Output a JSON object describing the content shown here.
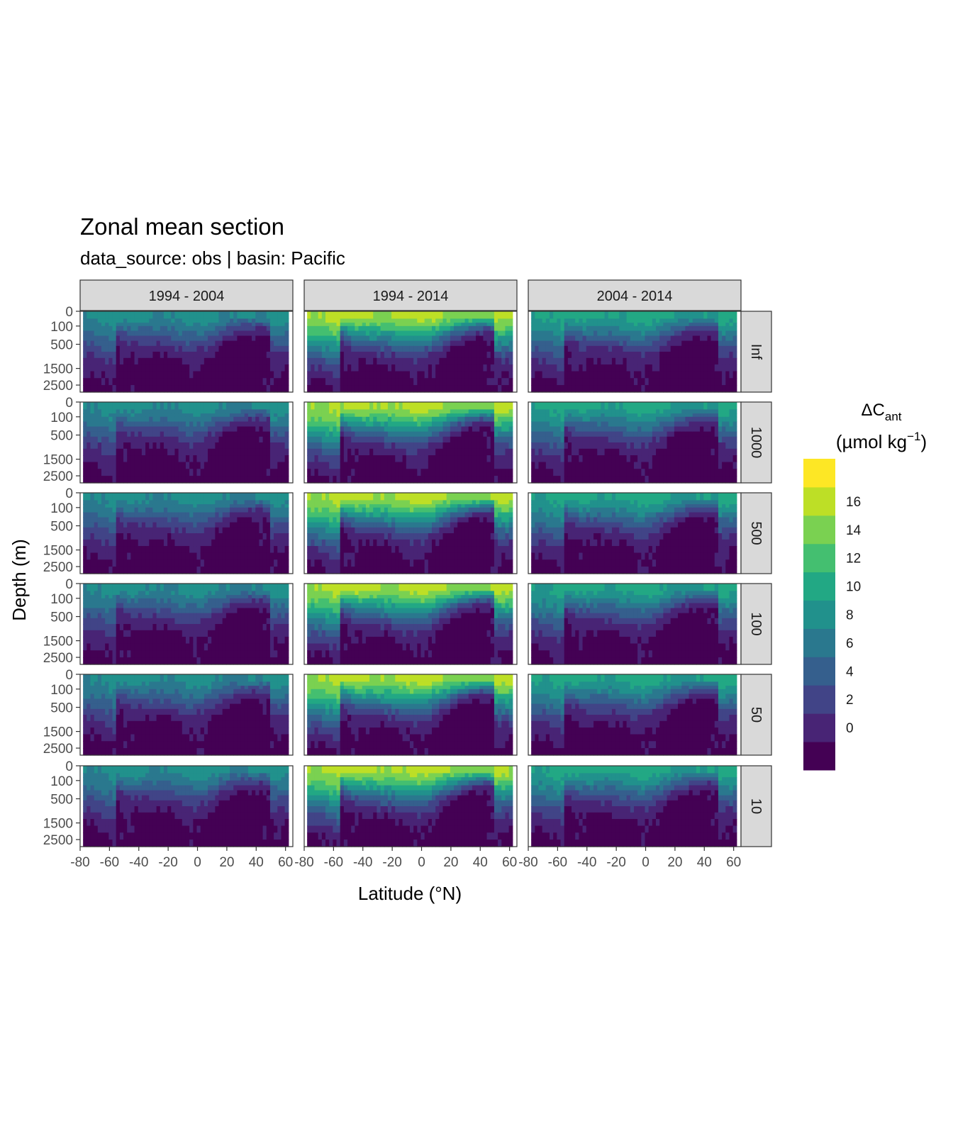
{
  "chart_data": {
    "type": "heatmap",
    "title": "Zonal mean section",
    "subtitle": "data_source:  obs | basin: Pacific",
    "xlabel": "Latitude (°N)",
    "ylabel": "Depth (m)",
    "xlim": [
      -80,
      65
    ],
    "x_ticks": [
      -80,
      -60,
      -40,
      -20,
      0,
      20,
      40,
      60
    ],
    "x_tick_labels": [
      "-80",
      "-60",
      "-40",
      "-20",
      "0",
      "20",
      "40",
      "60"
    ],
    "y_ticks": [
      0,
      100,
      500,
      1500,
      2500
    ],
    "y_tick_labels": [
      "0",
      "100",
      "500",
      "1500",
      "2500"
    ],
    "y_scale": "sqrt, reversed",
    "ylim": [
      3000,
      0
    ],
    "columns": [
      "1994 - 2004",
      "1994 - 2014",
      "2004 - 2014"
    ],
    "rows": [
      "Inf",
      "1000",
      "500",
      "100",
      "50",
      "10"
    ],
    "legend": {
      "title": "ΔC",
      "title_sub": "ant",
      "unit_prefix": "(µmol kg",
      "unit_exp": "−1",
      "unit_suffix": ")",
      "labels": [
        "16",
        "14",
        "12",
        "10",
        "8",
        "6",
        "4",
        "2",
        "0"
      ],
      "breaks": [
        -2,
        0,
        2,
        4,
        6,
        8,
        10,
        12,
        14,
        16,
        18
      ],
      "colors": [
        "#440154",
        "#482475",
        "#414487",
        "#355f8d",
        "#2a788e",
        "#21918c",
        "#22a884",
        "#44bf70",
        "#7ad151",
        "#bddf26",
        "#fde725"
      ],
      "position": "right"
    },
    "grid": true,
    "approx_surface_values": {
      "1994 - 2004": 10,
      "1994 - 2014": 18,
      "2004 - 2014": 12
    }
  }
}
